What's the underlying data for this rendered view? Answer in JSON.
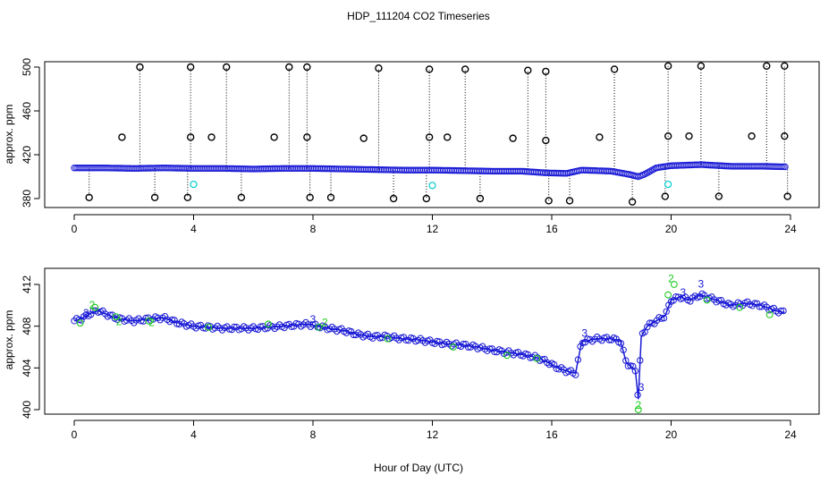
{
  "title": "HDP_111204  CO2 Timeseries",
  "xlabel": "Hour of Day (UTC)",
  "chart_data": [
    {
      "type": "scatter",
      "panel": "top",
      "ylabel": "approx. ppm",
      "xlim": [
        0,
        24
      ],
      "ylim": [
        380,
        500
      ],
      "x_ticks": [
        0,
        4,
        8,
        12,
        16,
        20,
        24
      ],
      "y_ticks": [
        380,
        420,
        460,
        500
      ],
      "x_tick_labels": [
        "0",
        "4",
        "8",
        "12",
        "16",
        "20",
        "24"
      ],
      "y_tick_labels": [
        "380",
        "420",
        "460",
        "500"
      ],
      "baseline_series": {
        "name": "CO2 (blue)",
        "x": [
          0.0,
          1.0,
          2.0,
          3.0,
          4.0,
          5.0,
          6.0,
          7.0,
          8.0,
          9.0,
          10.0,
          11.0,
          12.0,
          13.0,
          14.0,
          15.0,
          15.8,
          16.5,
          17.0,
          18.0,
          18.6,
          18.9,
          19.1,
          19.5,
          20.0,
          21.0,
          22.0,
          23.0,
          23.8
        ],
        "y": [
          408,
          408,
          407.5,
          408,
          407.5,
          407.5,
          407,
          407.5,
          407.5,
          407,
          406.5,
          406,
          406,
          405.5,
          405,
          405,
          403.5,
          403,
          406,
          405,
          402,
          400,
          402,
          408,
          410,
          411,
          409.5,
          409.5,
          409
        ]
      },
      "spike_high_x": [
        2.2,
        3.9,
        5.1,
        7.2,
        7.8,
        10.2,
        11.9,
        13.1,
        15.2,
        15.8,
        18.1,
        19.9,
        21.0,
        23.2,
        23.8
      ],
      "spike_high_y": [
        500,
        500,
        500,
        500,
        500,
        499,
        498,
        498,
        497,
        496,
        498,
        501,
        501,
        501,
        501
      ],
      "spike_mid_x": [
        1.6,
        3.9,
        4.6,
        6.7,
        7.8,
        9.7,
        11.9,
        12.5,
        14.7,
        15.8,
        17.6,
        19.9,
        20.6,
        22.7,
        23.8
      ],
      "spike_mid_y": [
        436,
        436,
        436,
        436,
        436,
        435,
        436,
        436,
        435,
        433,
        436,
        437,
        437,
        437,
        437
      ],
      "low_x": [
        0.5,
        2.7,
        3.8,
        5.6,
        7.9,
        8.6,
        10.7,
        11.8,
        13.6,
        15.9,
        16.6,
        18.7,
        19.8,
        21.6,
        23.9
      ],
      "low_y": [
        381,
        381,
        381,
        381,
        381,
        381,
        380,
        380,
        380,
        378,
        378,
        377,
        382,
        382,
        382
      ],
      "cyan_x": [
        4.0,
        12.0,
        19.9
      ],
      "cyan_y": [
        393,
        392,
        393
      ]
    },
    {
      "type": "scatter",
      "panel": "bottom",
      "ylabel": "approx. ppm",
      "xlim": [
        0,
        24
      ],
      "ylim": [
        400,
        412
      ],
      "x_ticks": [
        0,
        4,
        8,
        12,
        16,
        20,
        24
      ],
      "y_ticks": [
        400,
        404,
        408,
        412
      ],
      "x_tick_labels": [
        "0",
        "4",
        "8",
        "12",
        "16",
        "20",
        "24"
      ],
      "y_tick_labels": [
        "400",
        "404",
        "408",
        "412"
      ],
      "series": [
        {
          "name": "CO2 (blue)",
          "x": [
            0.0,
            0.3,
            0.6,
            0.8,
            1.2,
            1.5,
            2.0,
            2.5,
            3.0,
            3.5,
            4.0,
            5.0,
            6.0,
            7.0,
            7.8,
            8.5,
            9.0,
            9.5,
            10.0,
            10.5,
            11.0,
            11.5,
            12.0,
            12.5,
            13.0,
            13.5,
            14.0,
            14.5,
            15.0,
            15.5,
            15.9,
            16.2,
            16.5,
            16.8,
            17.0,
            17.5,
            18.0,
            18.3,
            18.5,
            18.8,
            18.9,
            19.0,
            19.2,
            19.5,
            19.8,
            20.0,
            20.3,
            20.6,
            21.0,
            21.5,
            22.0,
            22.5,
            23.0,
            23.5,
            23.8
          ],
          "y": [
            408.5,
            408.8,
            409.3,
            409.5,
            409.0,
            408.7,
            408.5,
            408.7,
            408.8,
            408.3,
            408.0,
            407.8,
            407.8,
            408.0,
            408.2,
            407.8,
            407.6,
            407.2,
            407.0,
            407.0,
            406.8,
            406.7,
            406.5,
            406.3,
            406.2,
            406.0,
            405.7,
            405.5,
            405.3,
            405.0,
            404.5,
            404.0,
            403.7,
            403.5,
            406.5,
            406.8,
            406.8,
            406.6,
            404.5,
            403.8,
            401.0,
            407.0,
            408.0,
            408.5,
            409.0,
            410.5,
            410.8,
            410.5,
            411.0,
            410.5,
            410.0,
            410.2,
            410.0,
            409.5,
            409.3
          ]
        },
        {
          "name": "CO2 (green)",
          "x": [
            0.2,
            0.7,
            1.4,
            2.5,
            4.5,
            6.5,
            8.2,
            10.5,
            12.7,
            14.5,
            15.5,
            18.9,
            19.9,
            20.1,
            21.2,
            22.3,
            23.3
          ],
          "y": [
            408.3,
            409.8,
            408.9,
            408.5,
            407.9,
            408.2,
            407.9,
            406.8,
            406.0,
            405.2,
            404.9,
            400.0,
            411.0,
            412.0,
            410.5,
            409.8,
            409.1
          ]
        }
      ],
      "labels_3": [
        "3",
        "3",
        "3",
        "3",
        "3",
        "3"
      ],
      "labels_3_x": [
        0.4,
        8.0,
        17.1,
        19.0,
        20.4,
        21.0
      ],
      "labels_3_y": [
        408.9,
        408.3,
        407.0,
        401.8,
        410.9,
        411.7
      ],
      "labels_2": [
        "2",
        "2",
        "2",
        "2",
        "2",
        "2"
      ],
      "labels_2_x": [
        0.6,
        1.5,
        2.6,
        8.4,
        18.9,
        20.0
      ],
      "labels_2_y": [
        409.7,
        408.1,
        408.0,
        408.0,
        400.1,
        412.2
      ]
    }
  ]
}
